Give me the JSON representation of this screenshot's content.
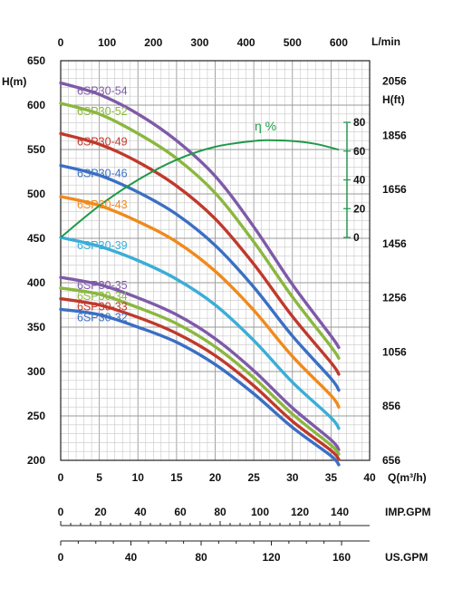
{
  "chart_data": {
    "type": "line",
    "axes": {
      "top": {
        "unit": "L/min",
        "ticks": [
          "0",
          "100",
          "200",
          "300",
          "400",
          "500",
          "600"
        ],
        "range": [
          0,
          666.7
        ]
      },
      "bottom": {
        "unit": "Q(m³/h)",
        "ticks": [
          "0",
          "5",
          "10",
          "15",
          "20",
          "25",
          "30",
          "35",
          "40"
        ],
        "range": [
          0,
          40
        ]
      },
      "left": {
        "unit": "H(m)",
        "ticks": [
          "200",
          "250",
          "300",
          "350",
          "400",
          "450",
          "500",
          "550",
          "600",
          "650"
        ],
        "range": [
          200,
          650
        ]
      },
      "right": {
        "unit": "H(ft)",
        "ticks": [
          "656",
          "856",
          "1056",
          "1256",
          "1456",
          "1656",
          "1856",
          "2056"
        ]
      },
      "efficiency": {
        "label": "η %",
        "ticks": [
          "0",
          "20",
          "40",
          "60",
          "80"
        ],
        "range": [
          0,
          80
        ]
      },
      "imp_gpm": {
        "unit": "IMP.GPM",
        "ticks": [
          "0",
          "20",
          "40",
          "60",
          "80",
          "100",
          "120",
          "140"
        ]
      },
      "us_gpm": {
        "unit": "US.GPM",
        "ticks": [
          "0",
          "40",
          "80",
          "120",
          "160"
        ]
      }
    },
    "grid": true,
    "x": [
      0,
      5,
      10,
      15,
      20,
      25,
      30,
      35,
      36
    ],
    "series": [
      {
        "name": "6SP30-54",
        "color": "#7f5aa8",
        "values": [
          625,
          612,
          590,
          560,
          520,
          463,
          398,
          340,
          327
        ]
      },
      {
        "name": "6SP30-52",
        "color": "#8bb73f",
        "values": [
          602,
          590,
          568,
          540,
          501,
          446,
          384,
          328,
          315
        ]
      },
      {
        "name": "6SP30-49",
        "color": "#c0392b",
        "values": [
          568,
          556,
          536,
          509,
          472,
          421,
          362,
          310,
          297
        ]
      },
      {
        "name": "6SP30-46",
        "color": "#3a6fc4",
        "values": [
          532,
          521,
          502,
          477,
          442,
          395,
          340,
          292,
          279
        ]
      },
      {
        "name": "6SP30-43",
        "color": "#f08a1c",
        "values": [
          497,
          487,
          469,
          446,
          413,
          369,
          317,
          273,
          260
        ]
      },
      {
        "name": "6SP30-39",
        "color": "#3aaed8",
        "values": [
          451,
          441,
          425,
          404,
          375,
          335,
          288,
          248,
          236
        ]
      },
      {
        "name": "6SP30-35",
        "color": "#7f5aa8",
        "values": [
          406,
          398,
          383,
          364,
          337,
          301,
          259,
          223,
          212
        ]
      },
      {
        "name": "6SP30-34",
        "color": "#8bb73f",
        "values": [
          394,
          387,
          372,
          354,
          328,
          293,
          252,
          217,
          207
        ]
      },
      {
        "name": "6SP30-33",
        "color": "#c0392b",
        "values": [
          382,
          375,
          361,
          343,
          318,
          284,
          244,
          211,
          201
        ]
      },
      {
        "name": "6SP30-32",
        "color": "#3a6fc4",
        "values": [
          370,
          364,
          350,
          333,
          308,
          275,
          237,
          205,
          195
        ]
      }
    ],
    "efficiency": {
      "label": "η %",
      "color": "#1f9a4a",
      "x": [
        0,
        5,
        10,
        15,
        20,
        25,
        27,
        30,
        33,
        36
      ],
      "values": [
        0,
        22,
        40,
        54,
        63,
        67,
        67.5,
        67,
        65,
        61
      ]
    }
  }
}
